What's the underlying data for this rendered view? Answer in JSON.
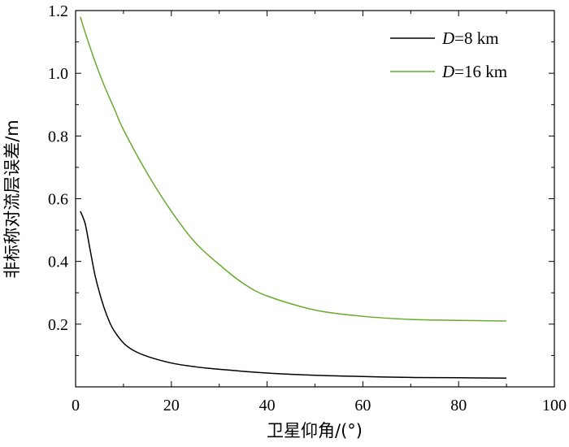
{
  "chart_data": {
    "type": "line",
    "title": "",
    "xlabel": "卫星仰角/(°)",
    "ylabel": "非标称对流层误差/m",
    "xlim": [
      0,
      100
    ],
    "ylim": [
      0,
      1.2
    ],
    "x_ticks": [
      0,
      20,
      40,
      60,
      80,
      100
    ],
    "x_tick_labels": [
      "0",
      "20",
      "40",
      "60",
      "80",
      "100"
    ],
    "y_ticks": [
      0.2,
      0.4,
      0.6,
      0.8,
      1.0,
      1.2
    ],
    "y_tick_labels": [
      "0.2",
      "0.4",
      "0.6",
      "0.8",
      "1.0",
      "1.2"
    ],
    "grid": false,
    "legend_position": "top-right",
    "series": [
      {
        "name": "D=8 km",
        "legend_var": "D",
        "legend_rest": "=8 km",
        "color": "#000000",
        "x": [
          1,
          2,
          3,
          4,
          5,
          6,
          7,
          8,
          10,
          12,
          15,
          20,
          25,
          30,
          40,
          50,
          60,
          70,
          80,
          90
        ],
        "y": [
          0.56,
          0.52,
          0.44,
          0.36,
          0.3,
          0.25,
          0.21,
          0.18,
          0.14,
          0.117,
          0.097,
          0.076,
          0.064,
          0.056,
          0.044,
          0.037,
          0.033,
          0.03,
          0.029,
          0.028
        ]
      },
      {
        "name": "D=16 km",
        "legend_var": "D",
        "legend_rest": "=16 km",
        "color": "#6aab2f",
        "x": [
          1,
          2,
          4,
          6,
          8,
          10,
          15,
          20,
          25,
          30,
          35,
          40,
          50,
          60,
          70,
          80,
          90
        ],
        "y": [
          1.18,
          1.13,
          1.04,
          0.96,
          0.89,
          0.82,
          0.68,
          0.56,
          0.46,
          0.39,
          0.33,
          0.29,
          0.245,
          0.225,
          0.215,
          0.212,
          0.21
        ]
      }
    ]
  }
}
